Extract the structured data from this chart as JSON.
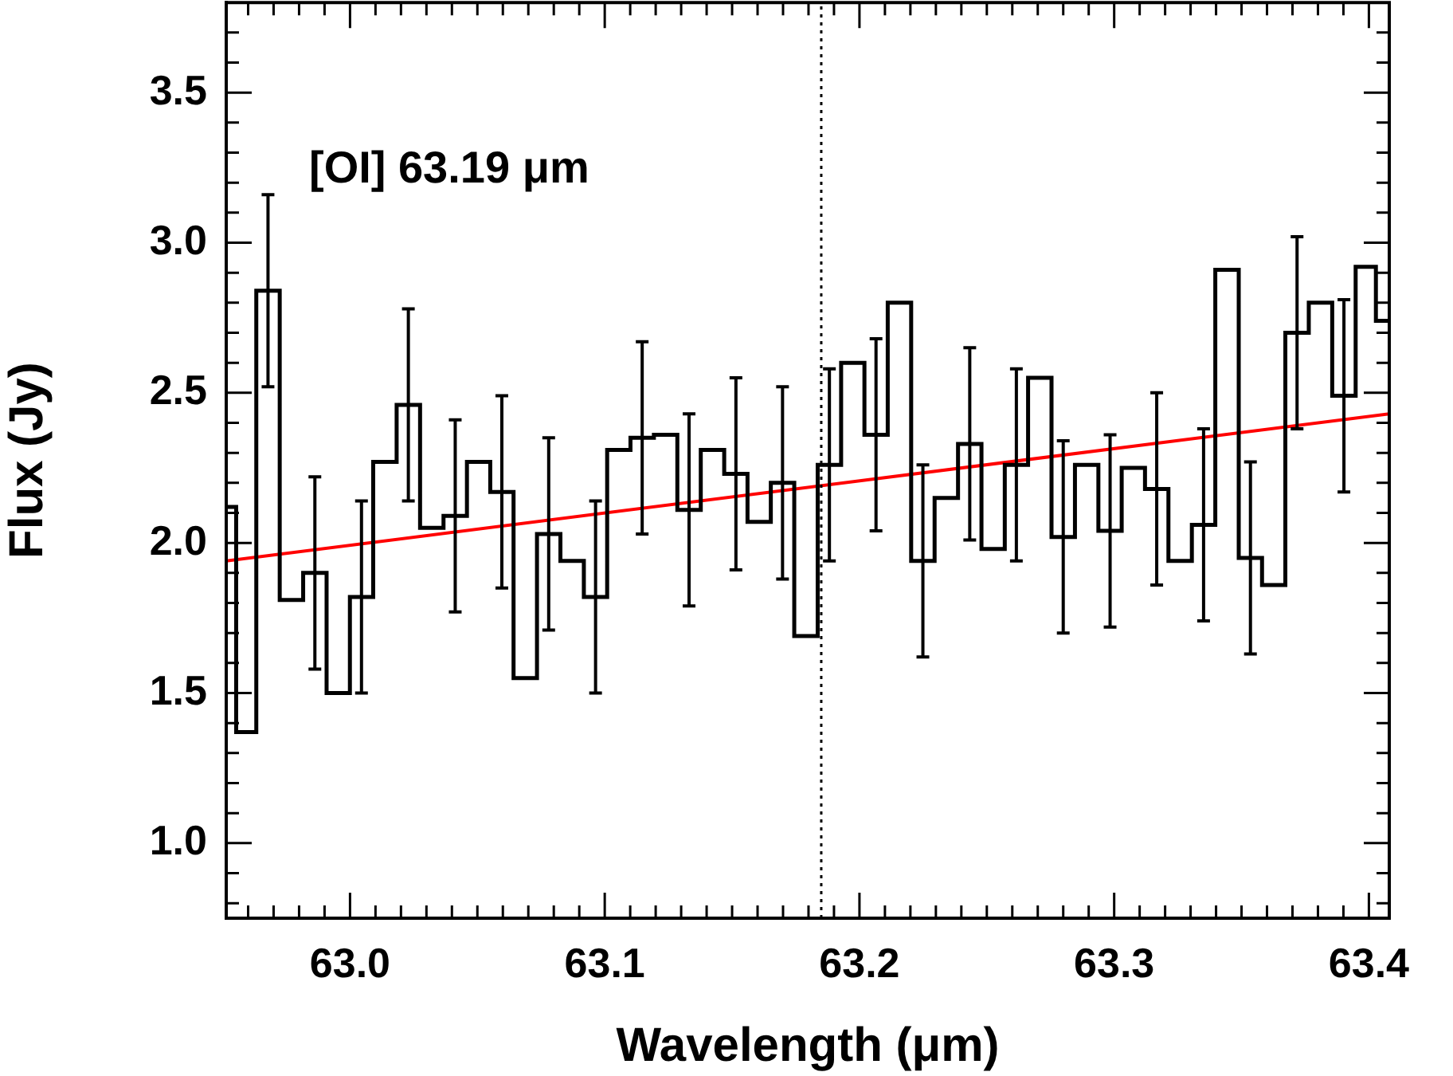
{
  "chart_data": {
    "type": "step",
    "xlabel": "Wavelength (μm)",
    "ylabel": "Flux (Jy)",
    "annotations": [
      "[OI] 63.19 μm"
    ],
    "x": [
      62.952,
      62.9586,
      62.9678,
      62.977,
      62.9862,
      62.9954,
      63.0045,
      63.0137,
      63.0229,
      63.0321,
      63.0413,
      63.0505,
      63.0596,
      63.0688,
      63.078,
      63.0872,
      63.0964,
      63.1055,
      63.1147,
      63.1239,
      63.1331,
      63.1423,
      63.1515,
      63.1606,
      63.1698,
      63.179,
      63.1882,
      63.1974,
      63.2065,
      63.2157,
      63.2249,
      63.2341,
      63.2433,
      63.2525,
      63.2616,
      63.2708,
      63.28,
      63.2892,
      63.2984,
      63.3075,
      63.3167,
      63.3259,
      63.3351,
      63.3443,
      63.3535,
      63.3626,
      63.3718,
      63.381,
      63.3902,
      63.3994,
      63.4061
    ],
    "series": [
      {
        "type": "step",
        "color": "#000000",
        "values": [
          2.12,
          1.37,
          2.84,
          1.81,
          1.9,
          1.5,
          1.82,
          2.27,
          2.46,
          2.05,
          2.09,
          2.27,
          2.17,
          1.55,
          2.03,
          1.94,
          1.82,
          2.31,
          2.35,
          2.36,
          2.11,
          2.31,
          2.23,
          2.07,
          2.2,
          1.69,
          2.26,
          2.6,
          2.36,
          2.8,
          1.94,
          2.15,
          2.33,
          1.98,
          2.26,
          2.55,
          2.02,
          2.26,
          2.04,
          2.25,
          2.18,
          1.94,
          2.06,
          2.91,
          1.95,
          1.86,
          2.7,
          2.8,
          2.49,
          2.92,
          2.74
        ],
        "errors": [
          null,
          null,
          0.32,
          null,
          0.32,
          null,
          0.32,
          null,
          0.32,
          null,
          0.32,
          null,
          0.32,
          null,
          0.32,
          null,
          0.32,
          null,
          0.32,
          null,
          0.32,
          null,
          0.32,
          null,
          0.32,
          null,
          0.32,
          null,
          0.32,
          null,
          0.32,
          null,
          0.32,
          null,
          0.32,
          null,
          0.32,
          null,
          0.32,
          null,
          0.32,
          null,
          0.32,
          null,
          0.32,
          null,
          0.32,
          null,
          0.32,
          null,
          null
        ]
      },
      {
        "type": "line",
        "color": "#ff0000",
        "x": [
          62.9514,
          63.408
        ],
        "values": [
          1.94,
          2.43
        ]
      }
    ],
    "ref_lines": [
      {
        "axis": "x",
        "value": 63.185,
        "color": "#000000",
        "line_style": "dotted"
      }
    ],
    "xlim": [
      62.9514,
      63.408
    ],
    "ylim": [
      0.75,
      3.8
    ],
    "xticks": [
      {
        "value": 62.96,
        "label": null
      },
      {
        "value": 62.97,
        "label": null
      },
      {
        "value": 62.98,
        "label": null
      },
      {
        "value": 62.99,
        "label": null
      },
      {
        "value": 63.0,
        "label": "63.0"
      },
      {
        "value": 63.01,
        "label": null
      },
      {
        "value": 63.02,
        "label": null
      },
      {
        "value": 63.03,
        "label": null
      },
      {
        "value": 63.04,
        "label": null
      },
      {
        "value": 63.05,
        "label": null
      },
      {
        "value": 63.06,
        "label": null
      },
      {
        "value": 63.07,
        "label": null
      },
      {
        "value": 63.08,
        "label": null
      },
      {
        "value": 63.09,
        "label": null
      },
      63.1,
      {
        "value": 63.11,
        "label": null
      },
      {
        "value": 63.12,
        "label": null
      },
      {
        "value": 63.13,
        "label": null
      },
      {
        "value": 63.14,
        "label": null
      },
      {
        "value": 63.15,
        "label": null
      },
      {
        "value": 63.16,
        "label": null
      },
      {
        "value": 63.17,
        "label": null
      },
      {
        "value": 63.18,
        "label": null
      },
      {
        "value": 63.19,
        "label": null
      },
      63.2,
      {
        "value": 63.21,
        "label": null
      },
      {
        "value": 63.22,
        "label": null
      },
      {
        "value": 63.23,
        "label": null
      },
      {
        "value": 63.24,
        "label": null
      },
      {
        "value": 63.25,
        "label": null
      },
      {
        "value": 63.26,
        "label": null
      },
      {
        "value": 63.27,
        "label": null
      },
      {
        "value": 63.28,
        "label": null
      },
      {
        "value": 63.29,
        "label": null
      },
      63.3,
      {
        "value": 63.31,
        "label": null
      },
      {
        "value": 63.32,
        "label": null
      },
      {
        "value": 63.33,
        "label": null
      },
      {
        "value": 63.34,
        "label": null
      },
      {
        "value": 63.35,
        "label": null
      },
      {
        "value": 63.36,
        "label": null
      },
      {
        "value": 63.37,
        "label": null
      },
      {
        "value": 63.38,
        "label": null
      },
      {
        "value": 63.39,
        "label": null
      },
      63.4
    ],
    "yticks": [
      {
        "value": 0.8,
        "label": null
      },
      {
        "value": 0.9,
        "label": null
      },
      {
        "value": 1.0,
        "label": "1.0"
      },
      {
        "value": 1.1,
        "label": null
      },
      {
        "value": 1.2,
        "label": null
      },
      {
        "value": 1.3,
        "label": null
      },
      {
        "value": 1.4,
        "label": null
      },
      1.5,
      {
        "value": 1.6,
        "label": null
      },
      {
        "value": 1.7,
        "label": null
      },
      {
        "value": 1.8,
        "label": null
      },
      {
        "value": 1.9,
        "label": null
      },
      {
        "value": 2.0,
        "label": "2.0"
      },
      {
        "value": 2.1,
        "label": null
      },
      {
        "value": 2.2,
        "label": null
      },
      {
        "value": 2.3,
        "label": null
      },
      {
        "value": 2.4,
        "label": null
      },
      2.5,
      {
        "value": 2.6,
        "label": null
      },
      {
        "value": 2.7,
        "label": null
      },
      {
        "value": 2.8,
        "label": null
      },
      {
        "value": 2.9,
        "label": null
      },
      {
        "value": 3.0,
        "label": "3.0"
      },
      {
        "value": 3.1,
        "label": null
      },
      {
        "value": 3.2,
        "label": null
      },
      {
        "value": 3.3,
        "label": null
      },
      {
        "value": 3.4,
        "label": null
      },
      3.5,
      {
        "value": 3.6,
        "label": null
      },
      {
        "value": 3.7,
        "label": null
      }
    ]
  }
}
